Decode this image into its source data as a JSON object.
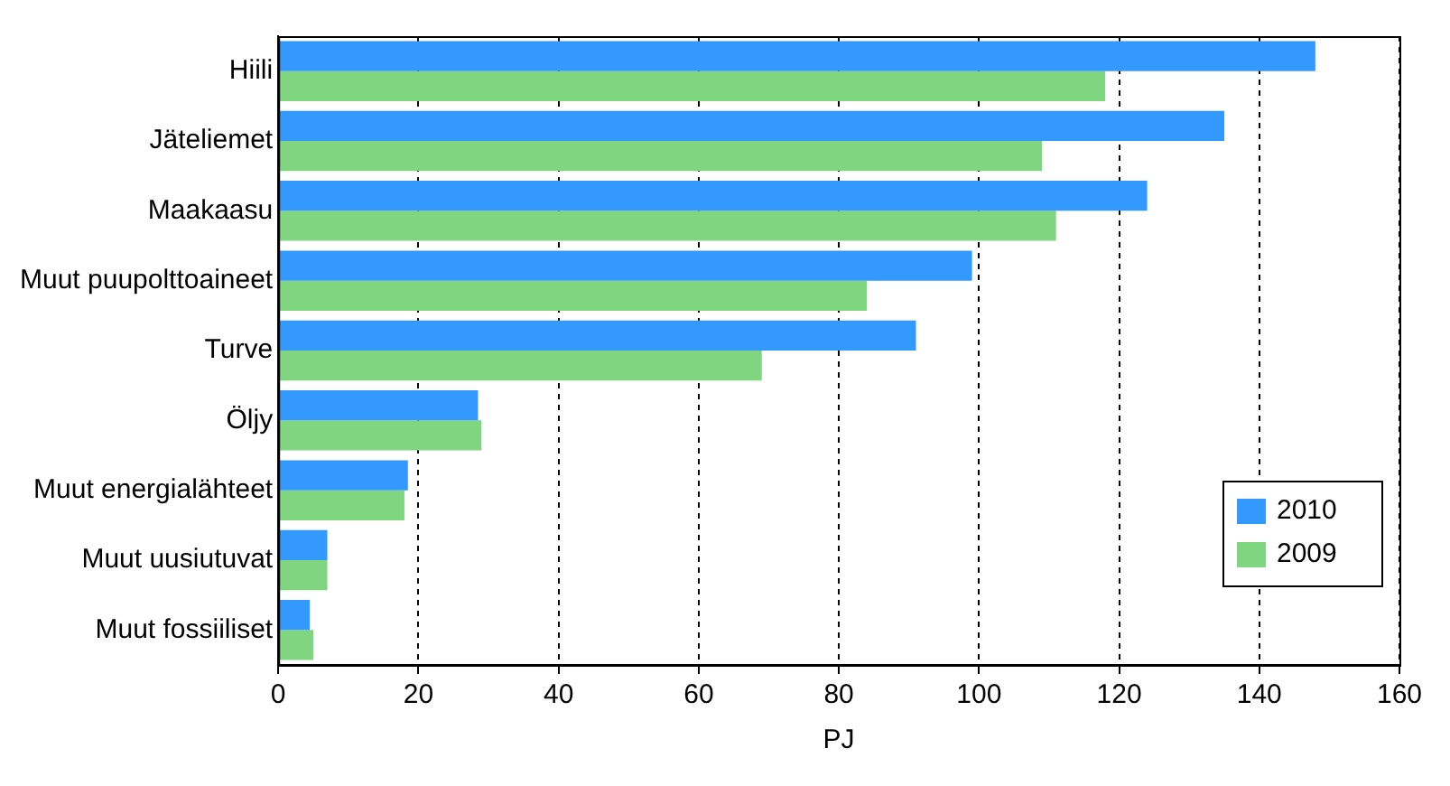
{
  "chart_data": {
    "type": "bar",
    "orientation": "horizontal",
    "xlabel": "PJ",
    "categories": [
      "Hiili",
      "Jäteliemet",
      "Maakaasu",
      "Muut puupolttoaineet",
      "Turve",
      "Öljy",
      "Muut energialähteet",
      "Muut uusiutuvat",
      "Muut fossiiliset"
    ],
    "series": [
      {
        "name": "2010",
        "color": "#3399ff",
        "values": [
          148,
          135,
          124,
          99,
          91,
          28.5,
          18.5,
          7,
          4.5
        ]
      },
      {
        "name": "2009",
        "color": "#80d680",
        "values": [
          118,
          109,
          111,
          84,
          69,
          29,
          18,
          7,
          5
        ]
      }
    ],
    "xlim": [
      0,
      160
    ],
    "xticks": [
      0,
      20,
      40,
      60,
      80,
      100,
      120,
      140,
      160
    ],
    "grid": "x",
    "legend": "bottom right"
  }
}
